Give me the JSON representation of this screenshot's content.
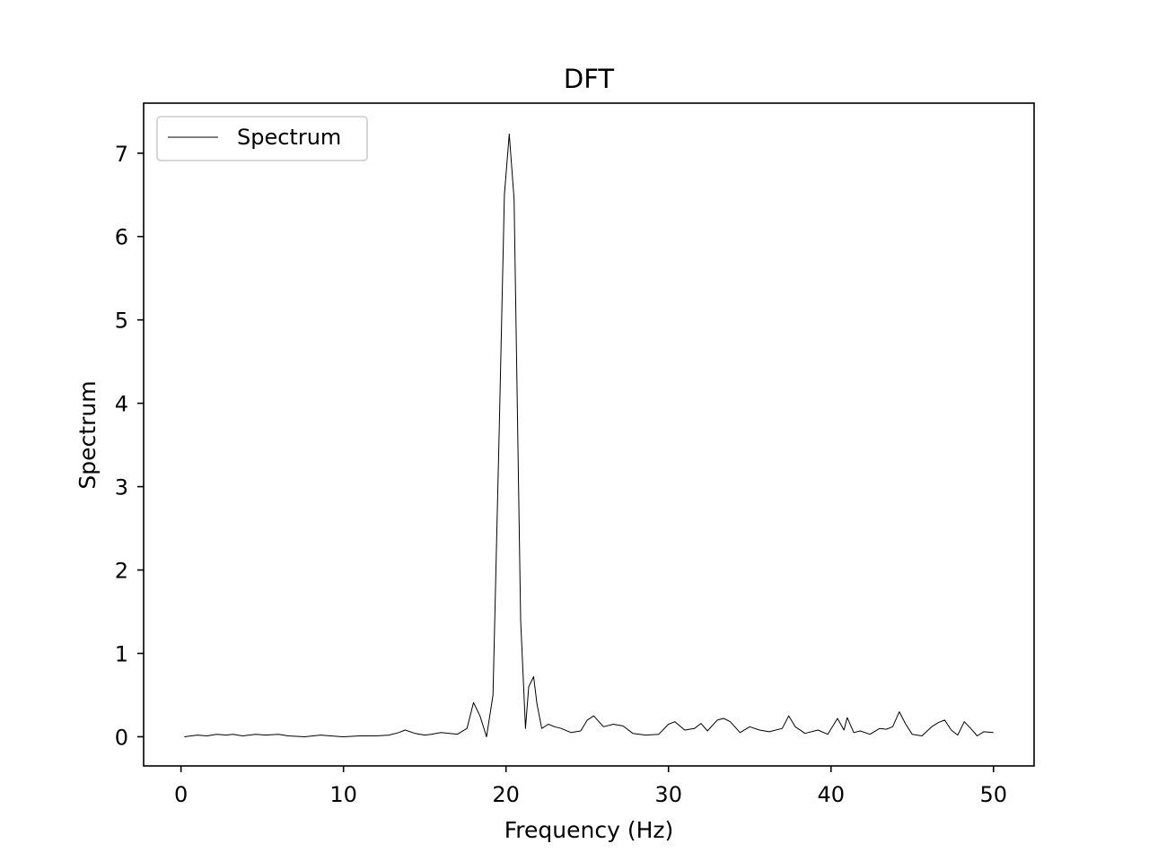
{
  "chart_data": {
    "type": "line",
    "title": "DFT",
    "xlabel": "Frequency (Hz)",
    "ylabel": "Spectrum",
    "xlim": [
      -2.3,
      52.5
    ],
    "ylim": [
      -0.35,
      7.6
    ],
    "xticks": [
      0,
      10,
      20,
      30,
      40,
      50
    ],
    "yticks": [
      0,
      1,
      2,
      3,
      4,
      5,
      6,
      7
    ],
    "grid": false,
    "legend": {
      "position": "top-left",
      "entries": [
        "Spectrum"
      ]
    },
    "line_color": "#000000",
    "series": [
      {
        "name": "Spectrum",
        "x": [
          0.2,
          1.0,
          1.6,
          2.2,
          2.8,
          3.2,
          3.8,
          4.6,
          5.2,
          6.0,
          6.6,
          7.6,
          8.6,
          9.2,
          10.0,
          11.0,
          12.0,
          12.8,
          13.4,
          13.8,
          14.4,
          15.0,
          15.4,
          16.0,
          17.0,
          17.6,
          18.0,
          18.4,
          18.8,
          19.2,
          19.6,
          19.9,
          20.2,
          20.5,
          20.9,
          21.2,
          21.4,
          21.7,
          21.9,
          22.2,
          22.6,
          23.0,
          23.4,
          24.0,
          24.6,
          25.0,
          25.4,
          26.0,
          26.6,
          27.2,
          27.8,
          28.6,
          29.4,
          30.0,
          30.4,
          31.0,
          31.6,
          32.0,
          32.4,
          33.0,
          33.4,
          33.8,
          34.4,
          35.0,
          35.6,
          36.2,
          37.0,
          37.4,
          37.8,
          38.4,
          39.2,
          39.8,
          40.4,
          40.8,
          41.0,
          41.4,
          41.8,
          42.4,
          43.0,
          43.4,
          43.8,
          44.2,
          44.6,
          45.0,
          45.6,
          46.2,
          46.6,
          47.0,
          47.4,
          47.8,
          48.2,
          48.6,
          49.0,
          49.4,
          50.0
        ],
        "y": [
          0.0,
          0.02,
          0.01,
          0.03,
          0.02,
          0.03,
          0.01,
          0.03,
          0.02,
          0.03,
          0.01,
          0.0,
          0.02,
          0.01,
          0.0,
          0.01,
          0.01,
          0.02,
          0.05,
          0.08,
          0.04,
          0.02,
          0.03,
          0.05,
          0.03,
          0.1,
          0.41,
          0.25,
          0.0,
          0.5,
          3.8,
          6.5,
          7.23,
          6.45,
          1.4,
          0.1,
          0.6,
          0.72,
          0.4,
          0.1,
          0.15,
          0.12,
          0.1,
          0.05,
          0.07,
          0.2,
          0.25,
          0.12,
          0.15,
          0.13,
          0.04,
          0.02,
          0.03,
          0.15,
          0.18,
          0.08,
          0.1,
          0.16,
          0.07,
          0.2,
          0.22,
          0.18,
          0.05,
          0.12,
          0.08,
          0.06,
          0.1,
          0.25,
          0.12,
          0.04,
          0.08,
          0.03,
          0.22,
          0.08,
          0.23,
          0.05,
          0.07,
          0.03,
          0.1,
          0.09,
          0.12,
          0.3,
          0.15,
          0.03,
          0.01,
          0.12,
          0.17,
          0.2,
          0.08,
          0.02,
          0.18,
          0.1,
          0.01,
          0.06,
          0.05
        ]
      }
    ]
  }
}
